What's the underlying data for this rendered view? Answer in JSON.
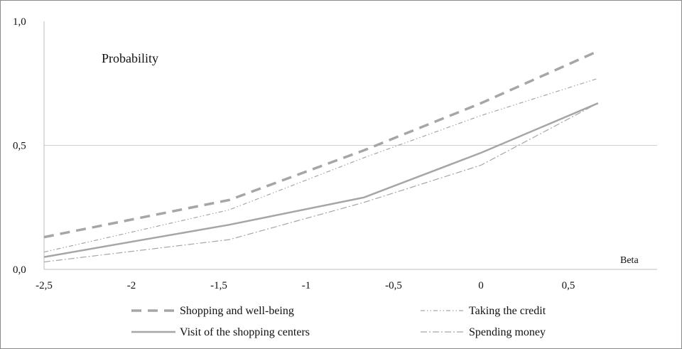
{
  "chart_data": {
    "type": "line",
    "title": "Probability",
    "xlabel": "Beta",
    "ylabel": "",
    "xlim": [
      -2.5,
      0.7
    ],
    "ylim": [
      0,
      1
    ],
    "x_ticks": [
      "-2,5",
      "-2",
      "-1,5",
      "-1",
      "-0,5",
      "0",
      "0,5"
    ],
    "x_tick_values": [
      -2.5,
      -2,
      -1.5,
      -1,
      -0.5,
      0,
      0.5
    ],
    "y_ticks": [
      "0,0",
      "0,5",
      "1,0"
    ],
    "y_tick_values": [
      0,
      0.5,
      1
    ],
    "grid": "horizontal line at 0,5",
    "legend_position": "bottom",
    "series": [
      {
        "name": "Shopping and well-being",
        "style": "dashed",
        "color": "#a6a6a6",
        "x": [
          -2.5,
          -1.44,
          -0.67,
          0,
          0.67
        ],
        "y": [
          0.13,
          0.28,
          0.48,
          0.67,
          0.88
        ]
      },
      {
        "name": "Taking the credit",
        "style": "dash-dot-dot",
        "color": "#a6a6a6",
        "x": [
          -2.5,
          -1.44,
          -0.67,
          0,
          0.67
        ],
        "y": [
          0.07,
          0.24,
          0.45,
          0.62,
          0.77
        ]
      },
      {
        "name": "Visit of the shopping centers",
        "style": "solid",
        "color": "#a6a6a6",
        "x": [
          -2.5,
          -1.44,
          -0.67,
          0,
          0.67
        ],
        "y": [
          0.05,
          0.18,
          0.29,
          0.47,
          0.67
        ]
      },
      {
        "name": "Spending money",
        "style": "dash-dot",
        "color": "#a6a6a6",
        "x": [
          -2.5,
          -1.44,
          -0.67,
          0,
          0.67
        ],
        "y": [
          0.03,
          0.12,
          0.27,
          0.42,
          0.67
        ]
      }
    ]
  }
}
